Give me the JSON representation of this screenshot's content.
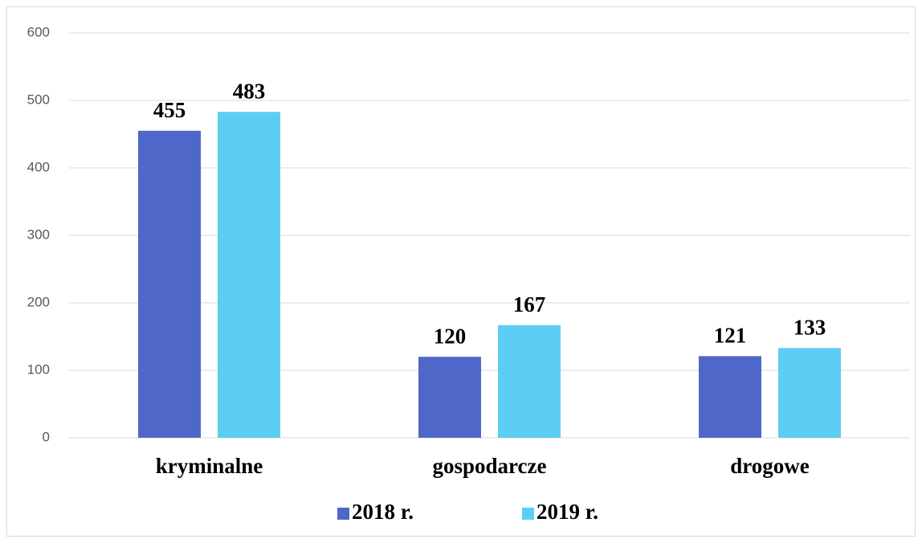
{
  "chart_data": {
    "type": "bar",
    "categories": [
      "kryminalne",
      "gospodarcze",
      "drogowe"
    ],
    "series": [
      {
        "name": "2018 r.",
        "color": "#4f67c9",
        "values": [
          455,
          120,
          121
        ]
      },
      {
        "name": "2019 r.",
        "color": "#5dcdf3",
        "values": [
          483,
          167,
          133
        ]
      }
    ],
    "ylim": [
      0,
      600
    ],
    "yticks": [
      0,
      100,
      200,
      300,
      400,
      500,
      600
    ],
    "grid": true,
    "legend": "bottom"
  }
}
